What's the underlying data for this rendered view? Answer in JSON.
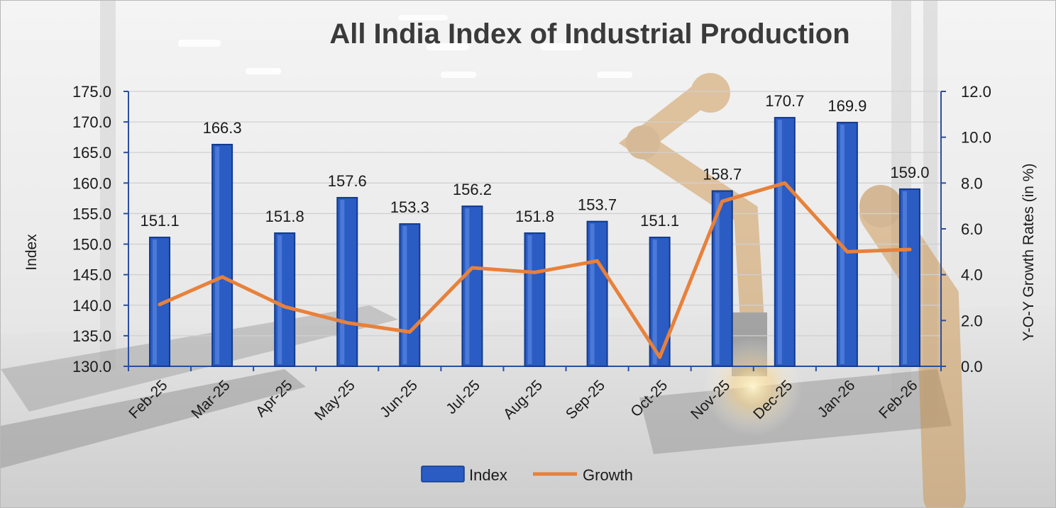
{
  "colors": {
    "bar": "#2a5cc4",
    "bar_dark": "#123a8c",
    "line": "#e8813a",
    "axis": "#2b4f9e",
    "grid": "#d0d0d0"
  },
  "chart_data": {
    "type": "bar",
    "title": "All India Index of Industrial Production",
    "categories": [
      "Feb-25",
      "Mar-25",
      "Apr-25",
      "May-25",
      "Jun-25",
      "Jul-25",
      "Aug-25",
      "Sep-25",
      "Oct-25",
      "Nov-25",
      "Dec-25",
      "Jan-26",
      "Feb-26"
    ],
    "series": [
      {
        "name": "Index",
        "kind": "bar",
        "axis": "left",
        "values": [
          151.1,
          166.3,
          151.8,
          157.6,
          153.3,
          156.2,
          151.8,
          153.7,
          151.1,
          158.7,
          170.7,
          169.9,
          159.0
        ],
        "labels": [
          "151.1",
          "166.3",
          "151.8",
          "157.6",
          "153.3",
          "156.2",
          "151.8",
          "153.7",
          "151.1",
          "158.7",
          "170.7",
          "169.9",
          "159.0"
        ]
      },
      {
        "name": "Growth",
        "kind": "line",
        "axis": "right",
        "values": [
          2.7,
          3.9,
          2.6,
          1.9,
          1.5,
          4.3,
          4.1,
          4.6,
          0.4,
          7.2,
          8.0,
          5.0,
          5.1
        ]
      }
    ],
    "ylabel": "Index",
    "y2label": "Y-O-Y Growth Rates (in %)",
    "ylim": [
      130,
      175
    ],
    "y2lim": [
      0,
      12
    ],
    "yticks": [
      "130.0",
      "135.0",
      "140.0",
      "145.0",
      "150.0",
      "155.0",
      "160.0",
      "165.0",
      "170.0",
      "175.0"
    ],
    "y2ticks": [
      "0.0",
      "2.0",
      "4.0",
      "6.0",
      "8.0",
      "10.0",
      "12.0"
    ],
    "legend_position": "bottom-center",
    "legend": [
      "Index",
      "Growth"
    ],
    "grid": true
  }
}
